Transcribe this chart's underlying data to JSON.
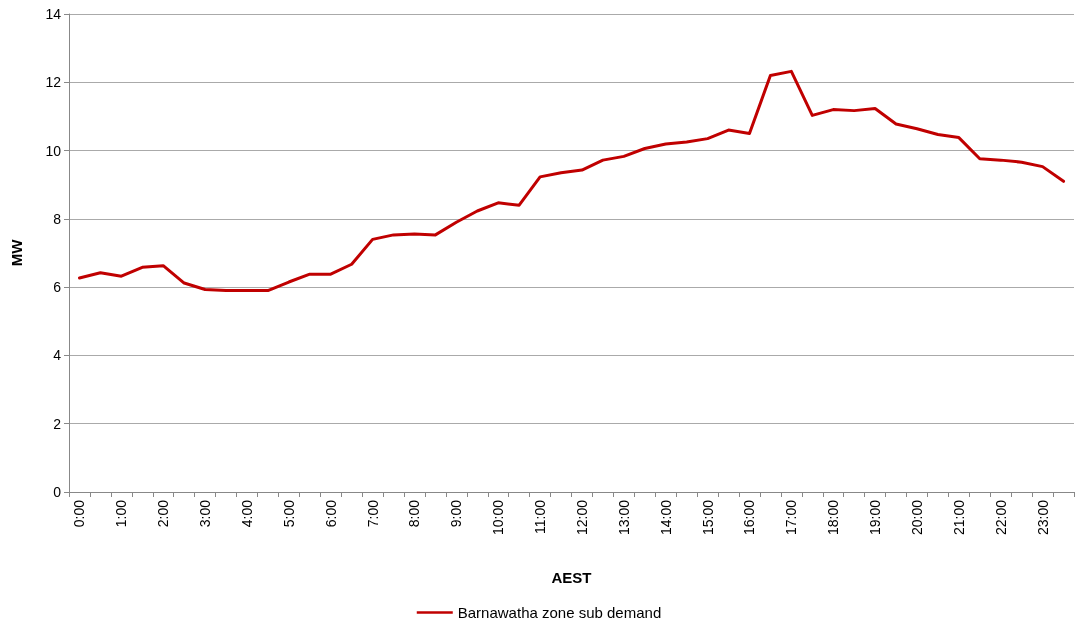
{
  "chart_data": {
    "type": "line",
    "xlabel": "AEST",
    "ylabel": "MW",
    "categories": [
      "0:00",
      null,
      "1:00",
      null,
      "2:00",
      null,
      "3:00",
      null,
      "4:00",
      null,
      "5:00",
      null,
      "6:00",
      null,
      "7:00",
      null,
      "8:00",
      null,
      "9:00",
      null,
      "10:00",
      null,
      "11:00",
      null,
      "12:00",
      null,
      "13:00",
      null,
      "14:00",
      null,
      "15:00",
      null,
      "16:00",
      null,
      "17:00",
      null,
      "18:00",
      null,
      "19:00",
      null,
      "20:00",
      null,
      "21:00",
      null,
      "22:00",
      null,
      "23:00",
      null
    ],
    "series": [
      {
        "name": "Barnawatha zone sub demand",
        "color": "#c00000",
        "values": [
          6.27,
          6.42,
          6.32,
          6.58,
          6.63,
          6.12,
          5.93,
          5.9,
          5.9,
          5.9,
          6.15,
          6.38,
          6.38,
          6.67,
          7.4,
          7.53,
          7.56,
          7.53,
          7.9,
          8.23,
          8.47,
          8.4,
          9.23,
          9.35,
          9.43,
          9.72,
          9.83,
          10.06,
          10.19,
          10.25,
          10.35,
          10.6,
          10.5,
          12.2,
          12.32,
          11.03,
          11.2,
          11.17,
          11.23,
          10.78,
          10.64,
          10.47,
          10.38,
          9.76,
          9.72,
          9.66,
          9.53,
          9.1
        ]
      }
    ],
    "ylim": [
      0,
      14
    ],
    "yticks": [
      0,
      2,
      4,
      6,
      8,
      10,
      12,
      14
    ],
    "grid": "y",
    "legend": "bottom",
    "marker": "none",
    "line_style": "solid"
  }
}
